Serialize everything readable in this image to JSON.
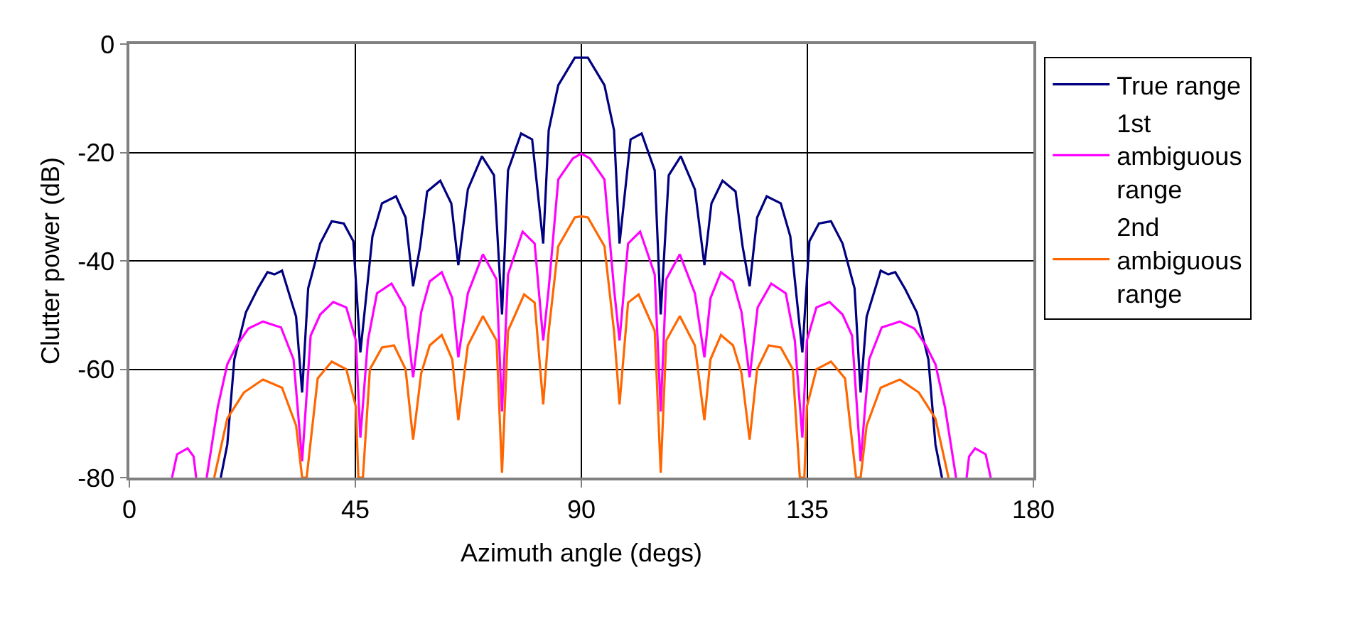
{
  "chart_data": {
    "type": "line",
    "xlabel": "Azimuth angle (degs)",
    "ylabel": "Clutter power (dB)",
    "xlim": [
      0,
      180
    ],
    "xticks": [
      0,
      45,
      90,
      135,
      180
    ],
    "ylim": [
      -80,
      0
    ],
    "yticks": [
      -80,
      -60,
      -40,
      -20,
      0
    ],
    "grid": true,
    "legend": "right",
    "marker": "none",
    "line_style": "solid",
    "series": [
      {
        "name": "True range",
        "color": "#000080",
        "x": [
          18.2,
          19.5,
          20.9,
          23.2,
          25.6,
          27.5,
          28.9,
          30.4,
          33.2,
          34.4,
          35.6,
          38.0,
          40.3,
          42.7,
          44.6,
          46.0,
          48.4,
          50.3,
          53.1,
          55.0,
          56.5,
          57.9,
          59.3,
          61.9,
          64.1,
          65.5,
          67.4,
          70.2,
          72.6,
          74.2,
          75.4,
          78.0,
          80.2,
          82.4,
          83.5,
          85.4,
          88.7,
          90,
          91.3,
          94.6,
          96.5,
          97.6,
          99.8,
          102.0,
          104.6,
          105.8,
          107.4,
          109.8,
          112.6,
          114.5,
          115.9,
          118.1,
          120.7,
          122.1,
          123.5,
          125.0,
          126.9,
          129.7,
          131.6,
          134.0,
          135.4,
          137.3,
          139.7,
          142.0,
          144.4,
          145.6,
          146.8,
          149.6,
          151.1,
          152.5,
          154.4,
          156.8,
          159.1,
          160.5,
          161.8
        ],
        "values": [
          -80,
          -73.9,
          -58.2,
          -49.5,
          -45.1,
          -42.1,
          -42.5,
          -41.8,
          -50.3,
          -64.3,
          -45.1,
          -36.8,
          -32.7,
          -33.1,
          -36.4,
          -56.9,
          -35.5,
          -29.4,
          -28.1,
          -32.0,
          -44.7,
          -37.3,
          -27.2,
          -25.2,
          -29.4,
          -40.8,
          -26.8,
          -20.7,
          -24.2,
          -49.9,
          -23.3,
          -16.5,
          -17.6,
          -36.8,
          -15.9,
          -7.6,
          -2.5,
          -2.5,
          -2.5,
          -7.6,
          -15.9,
          -36.8,
          -17.6,
          -16.5,
          -23.3,
          -49.9,
          -24.2,
          -20.7,
          -26.8,
          -40.8,
          -29.4,
          -25.2,
          -27.2,
          -37.3,
          -44.7,
          -32.0,
          -28.1,
          -29.4,
          -35.5,
          -56.9,
          -36.4,
          -33.1,
          -32.7,
          -36.8,
          -45.1,
          -64.3,
          -50.3,
          -41.8,
          -42.5,
          -42.1,
          -45.1,
          -49.5,
          -58.2,
          -73.9,
          -80
        ]
      },
      {
        "name": "1st ambiguous range",
        "color": "#ff00ff",
        "x": [
          8.5,
          9.5,
          11.6,
          12.8,
          13.3,
          14.3,
          15.4,
          17.6,
          19.5,
          21.4,
          23.7,
          26.6,
          30.2,
          32.7,
          34.4,
          36.1,
          38.0,
          40.6,
          43.2,
          45.1,
          46.0,
          47.5,
          49.3,
          52.2,
          54.9,
          56.5,
          58.1,
          59.8,
          62.2,
          64.3,
          65.5,
          67.4,
          70.4,
          73.1,
          74.2,
          75.4,
          78.3,
          80.7,
          82.4,
          83.5,
          85.4,
          88.3,
          90,
          91.7,
          94.6,
          96.5,
          97.6,
          99.3,
          101.7,
          104.6,
          105.8,
          106.9,
          109.6,
          112.6,
          114.5,
          115.7,
          117.8,
          120.2,
          121.9,
          123.5,
          125.1,
          127.8,
          130.7,
          132.5,
          134.0,
          134.9,
          136.8,
          139.4,
          142.0,
          143.9,
          145.6,
          147.3,
          149.8,
          153.4,
          156.3,
          158.6,
          160.5,
          162.4,
          164.6,
          165.7,
          166.7,
          167.2,
          168.4,
          170.5,
          171.5
        ],
        "values": [
          -80,
          -75.7,
          -74.6,
          -76.1,
          -80,
          null,
          -80,
          -67,
          -59.1,
          -55.6,
          -52.5,
          -51.2,
          -52.3,
          -58.2,
          -77,
          -53.8,
          -49.9,
          -47.6,
          -48.6,
          -54.7,
          -72.6,
          -54.7,
          -46,
          -44.2,
          -48.6,
          -61.5,
          -49.5,
          -43.8,
          -42.1,
          -46.9,
          -57.8,
          -46,
          -38.8,
          -43.4,
          -67.8,
          -42.5,
          -34.6,
          -36.8,
          -54.7,
          -45.1,
          -25,
          -21.1,
          -20.2,
          -21.1,
          -25,
          -45.1,
          -54.7,
          -36.8,
          -34.6,
          -42.5,
          -67.8,
          -43.4,
          -38.8,
          -46,
          -57.8,
          -46.9,
          -42.1,
          -43.8,
          -49.5,
          -61.5,
          -48.6,
          -44.2,
          -46,
          -54.7,
          -72.6,
          -54.7,
          -48.6,
          -47.6,
          -49.9,
          -53.8,
          -77,
          -58.2,
          -52.3,
          -51.2,
          -52.5,
          -55.6,
          -59.1,
          -67,
          -80,
          null,
          -80,
          -76.1,
          -74.6,
          -75.7,
          -80
        ]
      },
      {
        "name": "2nd ambiguous range",
        "color": "#ff6600",
        "x": [
          16.9,
          19.5,
          22.8,
          26.6,
          30.4,
          33.2,
          34.4,
          35.3,
          37.5,
          40.3,
          43.2,
          45.1,
          45.6,
          46.5,
          47.9,
          50.3,
          52.7,
          55.0,
          56.5,
          58.1,
          59.8,
          62.2,
          64.3,
          65.5,
          67.4,
          70.4,
          73.1,
          74.2,
          75.4,
          78.6,
          80.7,
          82.4,
          83.5,
          85.4,
          88.7,
          90,
          91.3,
          94.6,
          96.5,
          97.6,
          99.3,
          101.4,
          104.6,
          105.8,
          106.9,
          109.6,
          112.6,
          114.5,
          115.7,
          117.8,
          120.2,
          121.9,
          123.5,
          125.0,
          127.3,
          129.7,
          132.1,
          133.5,
          134.4,
          134.9,
          136.8,
          139.7,
          142.5,
          144.7,
          145.6,
          146.8,
          149.6,
          153.4,
          157.2,
          160.5,
          163.1
        ],
        "values": [
          -80,
          -69.1,
          -64.3,
          -61.9,
          -63.4,
          -70.4,
          -80,
          -80,
          -61.7,
          -58.6,
          -60,
          -66.9,
          -80,
          -80,
          -60,
          -56,
          -55.6,
          -60,
          -73,
          -60.8,
          -55.6,
          -53.7,
          -58.2,
          -69.4,
          -55.6,
          -50.2,
          -54.7,
          -79.1,
          -52.9,
          -46.2,
          -47.7,
          -66.5,
          -53,
          -37.3,
          -32,
          -31.8,
          -32,
          -37.3,
          -53,
          -66.5,
          -47.7,
          -46.2,
          -52.9,
          -79.1,
          -54.7,
          -50.2,
          -55.6,
          -69.4,
          -58.2,
          -53.7,
          -55.6,
          -60.8,
          -73,
          -60,
          -55.6,
          -56,
          -60,
          -80,
          -80,
          -66.9,
          -60,
          -58.6,
          -61.7,
          -80,
          -80,
          -70.4,
          -63.4,
          -61.9,
          -64.3,
          -69.1,
          -80
        ]
      }
    ]
  }
}
